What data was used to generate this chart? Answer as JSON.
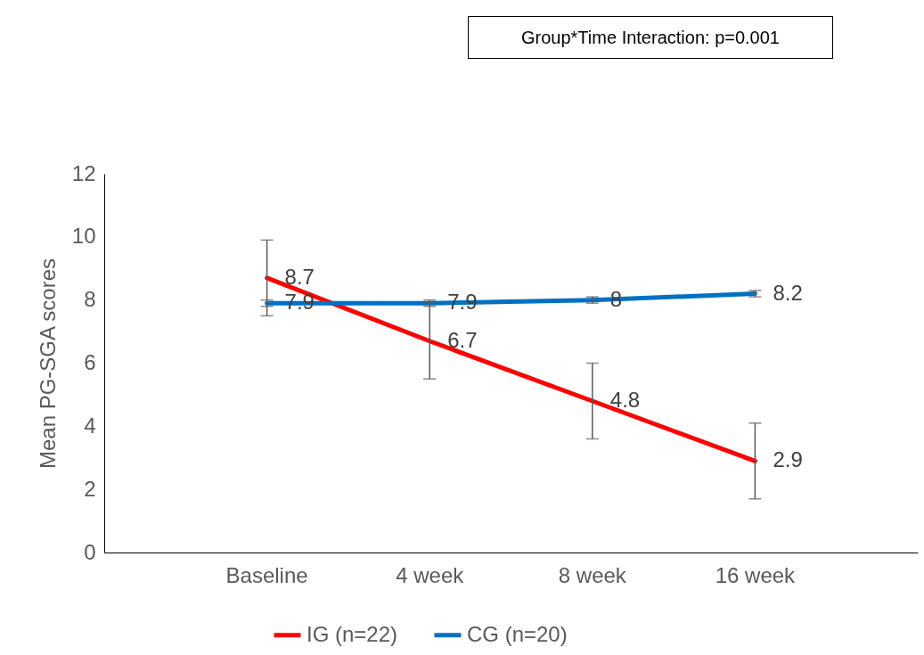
{
  "chart_data": {
    "type": "line",
    "ylabel": "Mean PG-SGA scores",
    "annotations": [
      "Group*Time Interaction: p=0.001"
    ],
    "categories": [
      "Baseline",
      "4 week",
      "8 week",
      "16 week"
    ],
    "series": [
      {
        "name": "IG (n=22)",
        "color": "#ff0000",
        "values": [
          8.7,
          6.7,
          4.8,
          2.9
        ],
        "errors": [
          1.2,
          1.2,
          1.2,
          1.2
        ]
      },
      {
        "name": "CG (n=20)",
        "color": "#0070c0",
        "values": [
          7.9,
          7.9,
          8,
          8.2
        ],
        "errors": [
          0.1,
          0.1,
          0.1,
          0.1
        ]
      }
    ],
    "ylim": [
      0,
      12
    ],
    "yticks": [
      0,
      2,
      4,
      6,
      8,
      10,
      12
    ],
    "grid": false,
    "legend": "bottom",
    "data_labels": true,
    "marker": "none",
    "line_style": "solid"
  }
}
